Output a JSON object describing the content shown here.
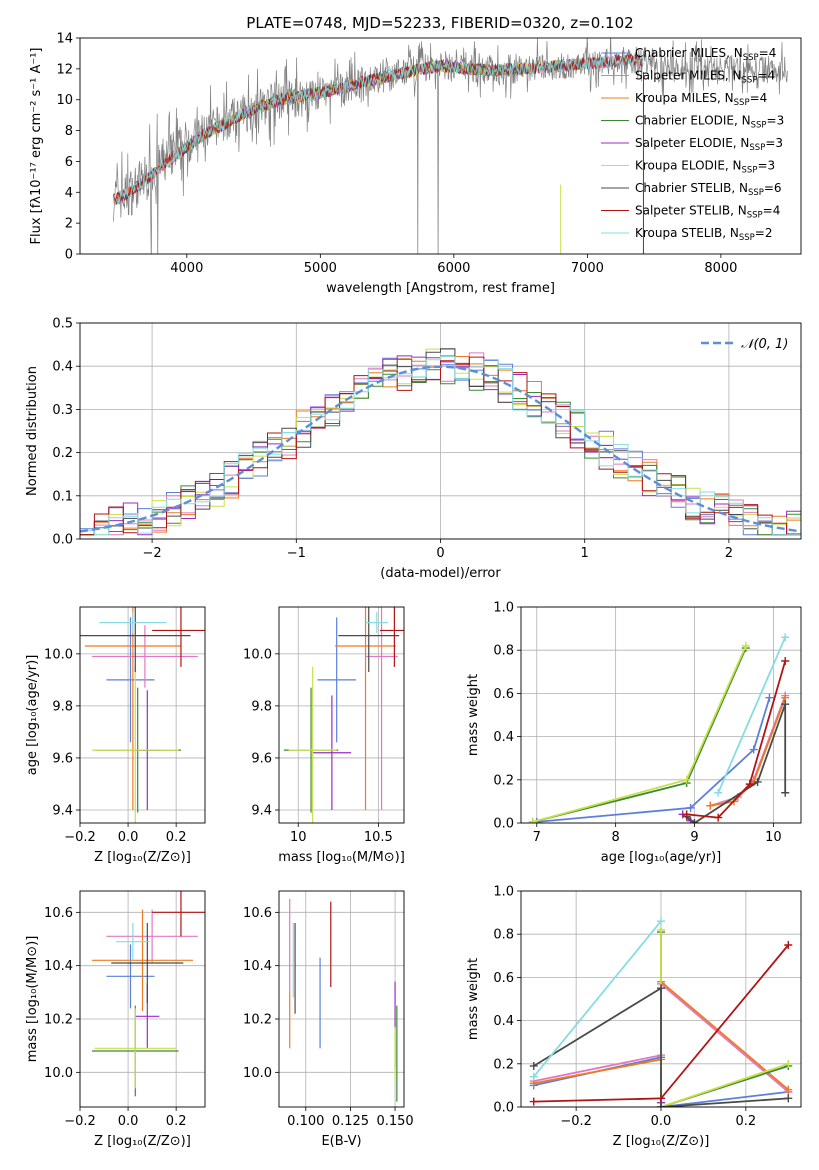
{
  "figure": {
    "title": "PLATE=0748, MJD=52233, FIBERID=0320, z=0.102"
  },
  "colors": {
    "Chabrier MILES": "#5b7fdb",
    "Salpeter MILES": "#e377c2",
    "Kroupa MILES": "#ee7b22",
    "Chabrier ELODIE": "#3a8a34",
    "Salpeter ELODIE": "#9b2bc9",
    "Kroupa ELODIE": "#c9e04a",
    "Chabrier STELIB": "#4a4a4a",
    "Salpeter STELIB": "#b21414",
    "Kroupa STELIB": "#86dce0",
    "data": "#808080",
    "gaussian": "#5b8fd9",
    "grid": "#b0b0b0"
  },
  "chart_data": [
    {
      "id": "spectrum",
      "type": "line",
      "title": "PLATE=0748, MJD=52233, FIBERID=0320, z=0.102",
      "xlabel": "wavelength [Angstrom, rest frame]",
      "ylabel": "Flux [fλ10⁻¹⁷ erg cm⁻² s⁻¹ A⁻¹]",
      "xlim": [
        3200,
        8600
      ],
      "ylim": [
        0,
        14
      ],
      "xticks": [
        4000,
        5000,
        6000,
        7000,
        8000
      ],
      "yticks": [
        0,
        2,
        4,
        6,
        8,
        10,
        12,
        14
      ],
      "grid": false,
      "legend_position": "top-right",
      "legend": [
        {
          "label": "Chabrier MILES, N",
          "sub": "SSP",
          "suffix": "=4",
          "model": "Chabrier MILES"
        },
        {
          "label": "Salpeter MILES, N",
          "sub": "SSP",
          "suffix": "=4",
          "model": "Salpeter MILES"
        },
        {
          "label": "Kroupa MILES, N",
          "sub": "SSP",
          "suffix": "=4",
          "model": "Kroupa MILES"
        },
        {
          "label": "Chabrier ELODIE, N",
          "sub": "SSP",
          "suffix": "=3",
          "model": "Chabrier ELODIE"
        },
        {
          "label": "Salpeter ELODIE, N",
          "sub": "SSP",
          "suffix": "=3",
          "model": "Salpeter ELODIE"
        },
        {
          "label": "Kroupa ELODIE, N",
          "sub": "SSP",
          "suffix": "=3",
          "model": "Kroupa ELODIE"
        },
        {
          "label": "Chabrier STELIB, N",
          "sub": "SSP",
          "suffix": "=6",
          "model": "Chabrier STELIB"
        },
        {
          "label": "Salpeter STELIB, N",
          "sub": "SSP",
          "suffix": "=4",
          "model": "Salpeter STELIB"
        },
        {
          "label": "Kroupa STELIB, N",
          "sub": "SSP",
          "suffix": "=2",
          "model": "Kroupa STELIB"
        }
      ],
      "data_envelope": {
        "x": [
          3450,
          3550,
          3700,
          3800,
          3950,
          4100,
          4300,
          4500,
          4700,
          4900,
          5100,
          5300,
          5500,
          5700,
          5900,
          6100,
          6300,
          6500,
          6700,
          6900,
          7100,
          7300,
          7500
        ],
        "y": [
          3.7,
          3.8,
          5.0,
          5.8,
          6.8,
          7.8,
          8.6,
          9.4,
          10.0,
          10.2,
          10.6,
          11.1,
          11.5,
          11.9,
          12.2,
          12.0,
          11.9,
          12.0,
          12.1,
          12.2,
          12.4,
          12.6,
          12.5
        ]
      },
      "model_range": {
        "Chabrier MILES": [
          3450,
          7420
        ],
        "Salpeter MILES": [
          3450,
          7420
        ],
        "Kroupa MILES": [
          3450,
          7420
        ],
        "Chabrier ELODIE": [
          3950,
          6800
        ],
        "Salpeter ELODIE": [
          3950,
          6800
        ],
        "Kroupa ELODIE": [
          3950,
          6800
        ],
        "Chabrier STELIB": [
          3450,
          7420
        ],
        "Salpeter STELIB": [
          3450,
          7420
        ],
        "Kroupa STELIB": [
          3450,
          7420
        ]
      },
      "model_overlay": {
        "x": [
          3450,
          3550,
          3700,
          3800,
          3950,
          4100,
          4300,
          4500,
          4700,
          4900,
          5100,
          5300,
          5500,
          5700,
          5900,
          6100,
          6300,
          6500,
          6700,
          6900,
          7100,
          7300,
          7420
        ],
        "y": [
          3.5,
          3.9,
          4.8,
          5.6,
          6.6,
          7.6,
          8.5,
          9.4,
          10.0,
          10.3,
          10.6,
          11.1,
          11.5,
          11.9,
          12.2,
          12.0,
          11.9,
          12.0,
          12.1,
          12.3,
          12.4,
          12.6,
          12.5
        ]
      }
    },
    {
      "id": "residuals",
      "type": "step",
      "xlabel": "(data-model)/error",
      "ylabel": "Normed distribution",
      "xlim": [
        -2.5,
        2.5
      ],
      "ylim": [
        0,
        0.5
      ],
      "xticks": [
        -2,
        -1,
        0,
        1,
        2
      ],
      "xticklabels": [
        "−2",
        "−1",
        "0",
        "1",
        "2"
      ],
      "yticks": [
        0.0,
        0.1,
        0.2,
        0.3,
        0.4,
        0.5
      ],
      "grid": true,
      "legend_position": "top-right",
      "legend": [
        {
          "label": "𝒩(0, 1)"
        }
      ],
      "bin_width": 0.1,
      "gaussian": {
        "mean": 0,
        "sigma": 1
      }
    },
    {
      "id": "z-age",
      "type": "errorbar",
      "xlabel": "Z [log₁₀(Z/Z⊙)]",
      "ylabel": "age  [log₁₀(age/yr)]",
      "xlim": [
        -0.2,
        0.32
      ],
      "ylim": [
        9.35,
        10.18
      ],
      "xticks": [
        -0.2,
        0.0,
        0.2
      ],
      "xticklabels": [
        "−0.2",
        "0.0",
        "0.2"
      ],
      "yticks": [
        9.4,
        9.6,
        9.8,
        10.0
      ],
      "grid": true,
      "points": [
        {
          "model": "Chabrier MILES",
          "x": 0.01,
          "xerr": 0.1,
          "y": 9.9,
          "yerr": 0.24
        },
        {
          "model": "Salpeter MILES",
          "x": 0.07,
          "xerr": 0.22,
          "y": 9.99,
          "yerr": 0.12
        },
        {
          "model": "Kroupa MILES",
          "x": 0.02,
          "xerr": 0.2,
          "y": 10.03,
          "yerr": 0.63
        },
        {
          "model": "Chabrier ELODIE",
          "x": 0.04,
          "xerr": 0.18,
          "y": 9.63,
          "yerr": 0.24
        },
        {
          "model": "Salpeter ELODIE",
          "x": 0.08,
          "xerr": 0.05,
          "y": 9.63,
          "yerr": 0.23
        },
        {
          "model": "Kroupa ELODIE",
          "x": 0.03,
          "xerr": 0.18,
          "y": 9.63,
          "yerr": 0.32
        },
        {
          "model": "Chabrier STELIB",
          "x": 0.03,
          "xerr": 0.23,
          "y": 10.07,
          "yerr": 0.14
        },
        {
          "model": "Salpeter STELIB",
          "x": 0.22,
          "xerr": 0.12,
          "y": 10.09,
          "yerr": 0.14
        },
        {
          "model": "Kroupa STELIB",
          "x": 0.02,
          "xerr": 0.14,
          "y": 10.12,
          "yerr": 0.04
        }
      ]
    },
    {
      "id": "mass-age",
      "type": "errorbar",
      "xlabel": "mass [log₁₀(M/M⊙)]",
      "ylabel": "",
      "xlim": [
        9.88,
        10.66
      ],
      "ylim": [
        9.35,
        10.18
      ],
      "xticks": [
        10.0,
        10.5
      ],
      "yticks": [
        9.4,
        9.6,
        9.8,
        10.0
      ],
      "grid": true,
      "points": [
        {
          "model": "Chabrier MILES",
          "x": 10.24,
          "xerr": 0.12,
          "y": 9.9,
          "yerr": 0.24
        },
        {
          "model": "Salpeter MILES",
          "x": 10.52,
          "xerr": 0.1,
          "y": 9.99,
          "yerr": 0.59
        },
        {
          "model": "Kroupa MILES",
          "x": 10.42,
          "xerr": 0.19,
          "y": 10.03,
          "yerr": 0.63
        },
        {
          "model": "Chabrier ELODIE",
          "x": 10.08,
          "xerr": 0.17,
          "y": 9.63,
          "yerr": 0.24
        },
        {
          "model": "Salpeter ELODIE",
          "x": 10.21,
          "xerr": 0.12,
          "y": 9.62,
          "yerr": 0.22
        },
        {
          "model": "Kroupa ELODIE",
          "x": 10.09,
          "xerr": 0.15,
          "y": 9.63,
          "yerr": 0.32
        },
        {
          "model": "Chabrier STELIB",
          "x": 10.44,
          "xerr": 0.19,
          "y": 10.07,
          "yerr": 0.14
        },
        {
          "model": "Salpeter STELIB",
          "x": 10.6,
          "xerr": 0.09,
          "y": 10.09,
          "yerr": 0.14
        },
        {
          "model": "Kroupa STELIB",
          "x": 10.49,
          "xerr": 0.07,
          "y": 10.12,
          "yerr": 0.04
        }
      ]
    },
    {
      "id": "age-weight",
      "type": "line",
      "xlabel": "age  [log₁₀(age/yr)]",
      "ylabel": "mass weight",
      "xlim": [
        6.8,
        10.35
      ],
      "ylim": [
        0,
        1.0
      ],
      "xticks": [
        7,
        8,
        9,
        10
      ],
      "yticks": [
        0.0,
        0.2,
        0.4,
        0.6,
        0.8,
        1.0
      ],
      "grid": true,
      "series": [
        {
          "model": "Chabrier MILES",
          "x": [
            7.0,
            8.95,
            9.75,
            9.95
          ],
          "y": [
            0.005,
            0.07,
            0.34,
            0.58
          ]
        },
        {
          "model": "Salpeter MILES",
          "x": [
            9.2,
            9.55,
            9.75,
            10.15
          ],
          "y": [
            0.08,
            0.12,
            0.2,
            0.59
          ]
        },
        {
          "model": "Kroupa MILES",
          "x": [
            9.2,
            9.5,
            9.75,
            10.15
          ],
          "y": [
            0.08,
            0.1,
            0.19,
            0.58
          ]
        },
        {
          "model": "Chabrier ELODIE",
          "x": [
            6.95,
            8.9,
            9.65
          ],
          "y": [
            0.005,
            0.185,
            0.81
          ]
        },
        {
          "model": "Salpeter ELODIE",
          "x": [
            8.85,
            8.95
          ],
          "y": [
            0.04,
            0.01
          ]
        },
        {
          "model": "Kroupa ELODIE",
          "x": [
            6.95,
            8.9,
            9.65
          ],
          "y": [
            0.005,
            0.2,
            0.82
          ]
        },
        {
          "model": "Chabrier STELIB",
          "x": [
            8.9,
            9.0,
            9.8,
            10.15,
            10.15
          ],
          "y": [
            0.03,
            0.0,
            0.19,
            0.55,
            0.14
          ]
        },
        {
          "model": "Salpeter STELIB",
          "x": [
            8.9,
            9.3,
            9.7,
            10.15
          ],
          "y": [
            0.04,
            0.025,
            0.18,
            0.75
          ]
        },
        {
          "model": "Kroupa STELIB",
          "x": [
            9.3,
            10.15
          ],
          "y": [
            0.14,
            0.86
          ]
        }
      ]
    },
    {
      "id": "z-mass",
      "type": "errorbar",
      "xlabel": "Z [log₁₀(Z/Z⊙)]",
      "ylabel": "mass [log₁₀(M/M⊙)]",
      "xlim": [
        -0.2,
        0.32
      ],
      "ylim": [
        9.87,
        10.68
      ],
      "xticks": [
        -0.2,
        0.0,
        0.2
      ],
      "xticklabels": [
        "−0.2",
        "0.0",
        "0.2"
      ],
      "yticks": [
        10.0,
        10.2,
        10.4,
        10.6
      ],
      "grid": true,
      "points": [
        {
          "model": "Chabrier MILES",
          "x": 0.01,
          "xerr": 0.1,
          "y": 10.36,
          "yerr": 0.12
        },
        {
          "model": "Salpeter MILES",
          "x": 0.1,
          "xerr": 0.19,
          "y": 10.51,
          "yerr": 0.1
        },
        {
          "model": "Kroupa MILES",
          "x": 0.06,
          "xerr": 0.21,
          "y": 10.42,
          "yerr": 0.19
        },
        {
          "model": "Chabrier ELODIE",
          "x": 0.03,
          "xerr": 0.18,
          "y": 10.08,
          "yerr": 0.17
        },
        {
          "model": "Salpeter ELODIE",
          "x": 0.08,
          "xerr": 0.05,
          "y": 10.21,
          "yerr": 0.12
        },
        {
          "model": "Kroupa ELODIE",
          "x": 0.03,
          "xerr": 0.17,
          "y": 10.09,
          "yerr": 0.15
        },
        {
          "model": "Chabrier STELIB",
          "x": 0.08,
          "xerr": 0.15,
          "y": 10.41,
          "yerr": 0.15
        },
        {
          "model": "Salpeter STELIB",
          "x": 0.22,
          "xerr": 0.12,
          "y": 10.6,
          "yerr": 0.09
        },
        {
          "model": "Kroupa STELIB",
          "x": 0.02,
          "xerr": 0.07,
          "y": 10.49,
          "yerr": 0.07
        }
      ]
    },
    {
      "id": "ebv-mass",
      "type": "errorbar",
      "xlabel": "E(B-V)",
      "ylabel": "",
      "xlim": [
        0.085,
        0.155
      ],
      "ylim": [
        9.87,
        10.68
      ],
      "xticks": [
        0.1,
        0.125,
        0.15
      ],
      "xticklabels": [
        "0.100",
        "0.125",
        "0.150"
      ],
      "yticks": [
        10.0,
        10.2,
        10.4,
        10.6
      ],
      "grid": true,
      "points": [
        {
          "model": "Chabrier MILES",
          "x": 0.108,
          "xerr": 0,
          "y": 10.26,
          "yerr": 0.17
        },
        {
          "model": "Salpeter MILES",
          "x": 0.091,
          "xerr": 0,
          "y": 10.48,
          "yerr": 0.17
        },
        {
          "model": "Kroupa MILES",
          "x": 0.091,
          "xerr": 0,
          "y": 10.2,
          "yerr": 0.11
        },
        {
          "model": "Chabrier ELODIE",
          "x": 0.151,
          "xerr": 0,
          "y": 10.07,
          "yerr": 0.18
        },
        {
          "model": "Salpeter ELODIE",
          "x": 0.15,
          "xerr": 0,
          "y": 10.18,
          "yerr": 0.16
        },
        {
          "model": "Kroupa ELODIE",
          "x": 0.15,
          "xerr": 0,
          "y": 10.07,
          "yerr": 0.1
        },
        {
          "model": "Chabrier STELIB",
          "x": 0.094,
          "xerr": 0,
          "y": 10.39,
          "yerr": 0.17
        },
        {
          "model": "Salpeter STELIB",
          "x": 0.114,
          "xerr": 0,
          "y": 10.48,
          "yerr": 0.16
        },
        {
          "model": "Kroupa STELIB",
          "x": 0.093,
          "xerr": 0,
          "y": 10.42,
          "yerr": 0.14
        }
      ]
    },
    {
      "id": "z-weight",
      "type": "line",
      "xlabel": "Z [log₁₀(Z/Z⊙)]",
      "ylabel": "mass weight",
      "xlim": [
        -0.33,
        0.33
      ],
      "ylim": [
        0,
        1.0
      ],
      "xticks": [
        -0.2,
        0.0,
        0.2
      ],
      "xticklabels": [
        "−0.2",
        "0.0",
        "0.2"
      ],
      "yticks": [
        0.0,
        0.2,
        0.4,
        0.6,
        0.8,
        1.0
      ],
      "grid": true,
      "series": [
        {
          "model": "Chabrier MILES",
          "x": [
            -0.3,
            0.0,
            0.0,
            0.3
          ],
          "y": [
            0.1,
            0.23,
            0.0,
            0.07
          ]
        },
        {
          "model": "Salpeter MILES",
          "x": [
            -0.3,
            0.0,
            0.0,
            0.3
          ],
          "y": [
            0.12,
            0.24,
            0.57,
            0.07
          ]
        },
        {
          "model": "Kroupa MILES",
          "x": [
            -0.3,
            0.0,
            0.0,
            0.3
          ],
          "y": [
            0.11,
            0.22,
            0.58,
            0.08
          ]
        },
        {
          "model": "Chabrier ELODIE",
          "x": [
            0.0,
            0.0,
            0.3
          ],
          "y": [
            0.81,
            0.0,
            0.19
          ]
        },
        {
          "model": "Salpeter ELODIE",
          "x": [
            0.0,
            0.0
          ],
          "y": [
            0.02,
            0.04
          ]
        },
        {
          "model": "Kroupa ELODIE",
          "x": [
            0.0,
            0.0,
            0.3
          ],
          "y": [
            0.82,
            0.0,
            0.2
          ]
        },
        {
          "model": "Chabrier STELIB",
          "x": [
            -0.3,
            0.0,
            0.0,
            0.3
          ],
          "y": [
            0.19,
            0.55,
            0.0,
            0.04
          ]
        },
        {
          "model": "Salpeter STELIB",
          "x": [
            -0.3,
            0.0,
            0.3
          ],
          "y": [
            0.025,
            0.04,
            0.75
          ]
        },
        {
          "model": "Kroupa STELIB",
          "x": [
            -0.3,
            0.0
          ],
          "y": [
            0.14,
            0.86
          ]
        }
      ]
    }
  ]
}
